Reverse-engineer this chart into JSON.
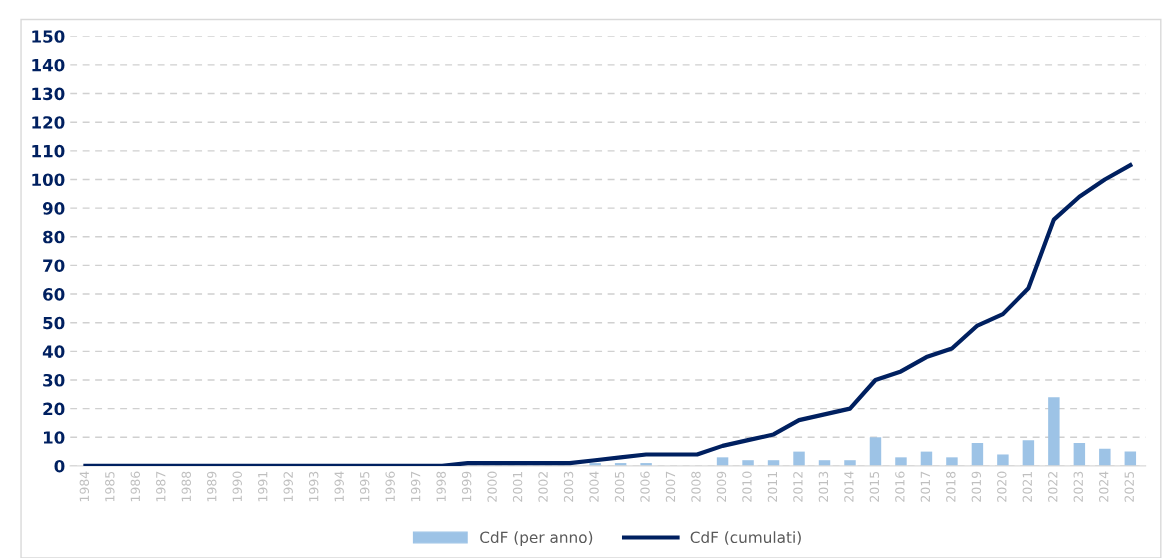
{
  "chart_data": {
    "type": "bar",
    "categories": [
      "1984",
      "1985",
      "1986",
      "1987",
      "1988",
      "1989",
      "1990",
      "1991",
      "1992",
      "1993",
      "1994",
      "1995",
      "1996",
      "1997",
      "1998",
      "1999",
      "2000",
      "2001",
      "2002",
      "2003",
      "2004",
      "2005",
      "2006",
      "2007",
      "2008",
      "2009",
      "2010",
      "2011",
      "2012",
      "2013",
      "2014",
      "2015",
      "2016",
      "2017",
      "2018",
      "2019",
      "2020",
      "2021",
      "2022",
      "2023",
      "2024",
      "2025"
    ],
    "series": [
      {
        "name": "CdF (per anno)",
        "color": "#9dc3e6",
        "values": [
          0,
          0,
          0,
          0,
          0,
          0,
          0,
          0,
          0,
          0,
          0,
          0,
          0,
          0,
          0,
          null,
          0,
          0,
          0,
          0,
          1,
          1,
          1,
          0,
          0,
          3,
          2,
          2,
          5,
          2,
          2,
          10,
          3,
          5,
          3,
          8,
          4,
          9,
          24,
          8,
          6,
          5
        ]
      },
      {
        "name": "CdF (cumulati)",
        "type": "line",
        "color": "#002060",
        "values": [
          0,
          0,
          0,
          0,
          0,
          0,
          0,
          0,
          0,
          0,
          0,
          0,
          0,
          0,
          0,
          1,
          1,
          1,
          1,
          1,
          2,
          3,
          4,
          4,
          4,
          7,
          9,
          11,
          16,
          18,
          20,
          30,
          33,
          38,
          41,
          49,
          53,
          62,
          86,
          94,
          100,
          105
        ]
      }
    ],
    "ylim": [
      0,
      150
    ],
    "yticks": [
      0,
      10,
      20,
      30,
      40,
      50,
      60,
      70,
      80,
      90,
      100,
      110,
      120,
      130,
      140,
      150
    ],
    "grid": "y",
    "legend": "bottom",
    "marker": "none",
    "line_style": "solid"
  }
}
